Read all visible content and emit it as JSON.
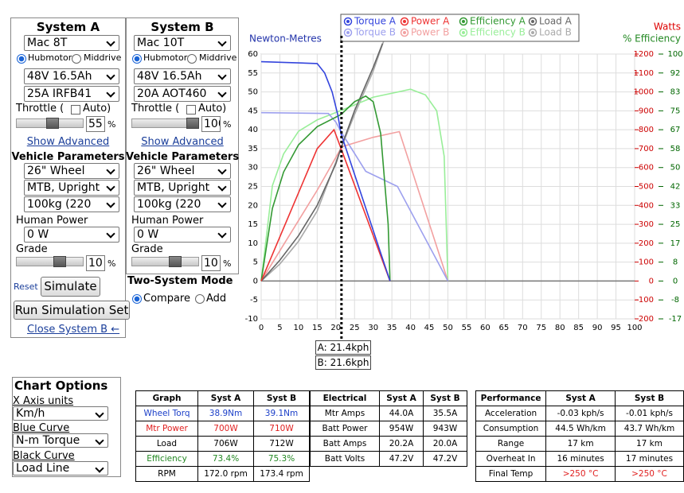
{
  "system_a": {
    "title": "System A",
    "motor": "Mac 8T",
    "drive": [
      "Hubmotor",
      "Middrive"
    ],
    "battery": "48V 16.5Ah",
    "controller": "25A IRFB41",
    "throttle_label": "Throttle (",
    "auto": "Auto)",
    "throttle": 55,
    "throttle_unit": "%",
    "show_advanced": "Show Advanced",
    "vehicle_title": "Vehicle Parameters",
    "wheel": "26\" Wheel",
    "frame": "MTB, Upright",
    "weight": "100kg (220",
    "human_label": "Human Power",
    "human": "0 W",
    "grade_label": "Grade",
    "grade": 10,
    "grade_unit": "%"
  },
  "system_b": {
    "title": "System B",
    "motor": "Mac 10T",
    "drive": [
      "Hubmotor",
      "Middrive"
    ],
    "battery": "48V 16.5Ah",
    "controller": "20A AOT460",
    "throttle_label": "Throttle (",
    "auto": "Auto)",
    "throttle": 100,
    "throttle_unit": "%",
    "show_advanced": "Show Advanced",
    "vehicle_title": "Vehicle Parameters",
    "wheel": "26\" Wheel",
    "frame": "MTB, Upright",
    "weight": "100kg (220",
    "human_label": "Human Power",
    "human": "0 W",
    "grade_label": "Grade",
    "grade": 10,
    "grade_unit": "%"
  },
  "controls": {
    "reset": "Reset",
    "simulate": "Simulate",
    "run_set": "Run Simulation Set",
    "close_b": "Close System B ←",
    "mode_title": "Two-System Mode",
    "modes": [
      "Compare",
      "Add"
    ]
  },
  "chart_data": {
    "type": "line",
    "y_label": "Newton-Metres",
    "y2_label": "Watts",
    "y3_label": "% Efficiency",
    "xlim": [
      0,
      100
    ],
    "xticks": [
      0,
      5,
      10,
      15,
      20,
      25,
      30,
      35,
      40,
      45,
      50,
      55,
      60,
      65,
      70,
      75,
      80,
      85,
      90,
      95,
      100
    ],
    "ylim": [
      -10,
      60
    ],
    "yticks": [
      -10,
      -5,
      0,
      5,
      10,
      15,
      20,
      25,
      30,
      35,
      40,
      45,
      50,
      55,
      60
    ],
    "y2lim": [
      -200,
      1200
    ],
    "y2ticks": [
      -200,
      -100,
      0,
      100,
      200,
      300,
      400,
      500,
      600,
      700,
      800,
      900,
      1000,
      1100,
      1200
    ],
    "y3lim": [
      -16.67,
      100
    ],
    "y3ticks": [
      {
        "value": -16.67,
        "label": "-17"
      },
      {
        "value": -8.33,
        "label": "-8"
      },
      0,
      {
        "value": 8.33,
        "label": "8"
      },
      {
        "value": 16.67,
        "label": "17"
      },
      25,
      {
        "value": 33.33,
        "label": "33"
      },
      {
        "value": 41.67,
        "label": "42"
      },
      50,
      {
        "value": 58.33,
        "label": "58"
      },
      {
        "value": 66.67,
        "label": "67"
      },
      75,
      {
        "value": 83.33,
        "label": "83"
      },
      {
        "value": 91.67,
        "label": "92"
      },
      100
    ],
    "grid": true,
    "cursor_x": 21.5,
    "cursor_labels": [
      "A: 21.4kph",
      "B: 21.6kph"
    ],
    "series": [
      {
        "name": "Torque A",
        "color": "#3344dd",
        "axis": "y",
        "x": [
          0,
          15,
          17,
          19,
          20.5,
          21.4,
          34.5
        ],
        "values": [
          58,
          57.5,
          55,
          50,
          44,
          38.9,
          0
        ]
      },
      {
        "name": "Power A",
        "color": "#ee3333",
        "axis": "y2",
        "x": [
          0,
          15,
          19.5,
          21.4,
          34.5
        ],
        "values": [
          0,
          700,
          800,
          700,
          0
        ]
      },
      {
        "name": "Efficiency A",
        "color": "#339933",
        "axis": "y3",
        "x": [
          0,
          3,
          6,
          10,
          15,
          21.4,
          25,
          28,
          30,
          32,
          34,
          34.5
        ],
        "values": [
          0,
          32,
          48,
          60,
          68,
          73.4,
          79,
          81.5,
          79,
          65,
          25,
          0
        ]
      },
      {
        "name": "Load A",
        "color": "#666666",
        "axis": "y2",
        "x": [
          0,
          5,
          10,
          15,
          20,
          21.4,
          25,
          30,
          32.5
        ],
        "values": [
          0,
          110,
          240,
          400,
          620,
          706,
          900,
          1130,
          1256
        ]
      },
      {
        "name": "Torque B",
        "color": "#9da0ee",
        "axis": "y",
        "x": [
          0,
          18,
          20,
          21.6,
          28,
          36.5,
          50
        ],
        "values": [
          44.5,
          44.3,
          42,
          39.1,
          29,
          25,
          0
        ]
      },
      {
        "name": "Power B",
        "color": "#f2a0a0",
        "axis": "y2",
        "x": [
          0,
          15,
          21.6,
          30,
          37,
          50
        ],
        "values": [
          0,
          480,
          710,
          760,
          790,
          0
        ]
      },
      {
        "name": "Efficiency B",
        "color": "#99ee99",
        "axis": "y3",
        "x": [
          0,
          3,
          6,
          10,
          15,
          21.6,
          30,
          40,
          44,
          47,
          49,
          50
        ],
        "values": [
          0,
          42,
          56,
          66,
          71,
          75.3,
          81,
          84.5,
          82,
          75,
          55,
          0
        ]
      },
      {
        "name": "Load B",
        "color": "#aaaaaa",
        "axis": "y2",
        "x": [
          0,
          5,
          10,
          15,
          21.6,
          25,
          30,
          33
        ],
        "values": [
          0,
          90,
          210,
          370,
          712,
          880,
          1110,
          1280
        ]
      }
    ]
  },
  "chart_options": {
    "title": "Chart Options",
    "x_units_label": "X Axis units",
    "x_units": "Km/h",
    "blue_label": "Blue Curve",
    "blue": "N-m Torque",
    "black_label": "Black Curve",
    "black": "Load Line"
  },
  "tables": [
    {
      "rows": [
        [
          "Graph",
          "Syst A",
          "Syst B"
        ],
        [
          "Wheel Torq",
          "38.9Nm",
          "39.1Nm"
        ],
        [
          "Mtr Power",
          "700W",
          "710W"
        ],
        [
          "Load",
          "706W",
          "712W"
        ],
        [
          "Efficiency",
          "73.4%",
          "75.3%"
        ],
        [
          "RPM",
          "172.0 rpm",
          "173.4 rpm"
        ]
      ]
    },
    {
      "rows": [
        [
          "Electrical",
          "Syst A",
          "Syst B"
        ],
        [
          "Mtr Amps",
          "44.0A",
          "35.5A"
        ],
        [
          "Batt Power",
          "954W",
          "943W"
        ],
        [
          "Batt Amps",
          "20.2A",
          "20.0A"
        ],
        [
          "Batt Volts",
          "47.2V",
          "47.2V"
        ]
      ]
    },
    {
      "rows": [
        [
          "Performance",
          "Syst A",
          "Syst B"
        ],
        [
          "Acceleration",
          "-0.03 kph/s",
          "-0.01 kph/s"
        ],
        [
          "Consumption",
          "44.5 Wh/km",
          "43.7 Wh/km"
        ],
        [
          "Range",
          "17 km",
          "17 km"
        ],
        [
          "Overheat In",
          "16 minutes",
          "17 minutes"
        ],
        [
          "Final Temp",
          ">250 °C",
          ">250 °C"
        ]
      ]
    }
  ]
}
